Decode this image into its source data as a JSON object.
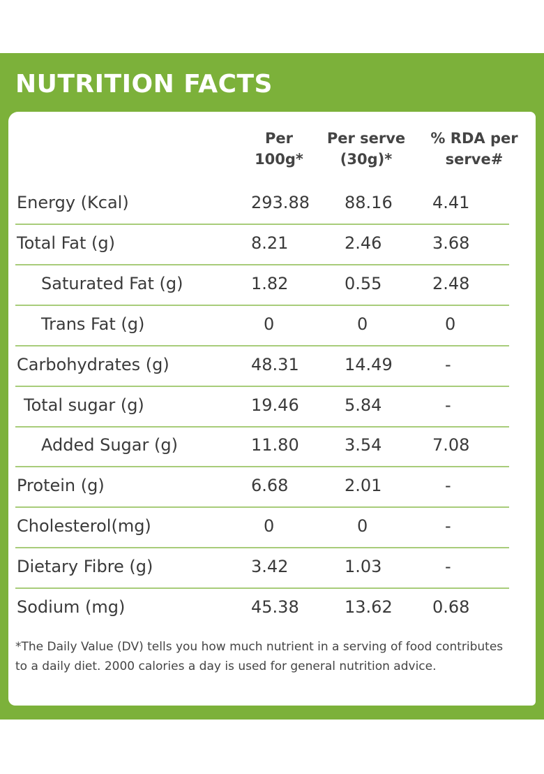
{
  "header": {
    "title": "NUTRITION FACTS"
  },
  "table": {
    "columns": [
      [
        "Per",
        "100g*"
      ],
      [
        "Per serve",
        "(30g)*"
      ],
      [
        "% RDA per",
        "serve#"
      ]
    ],
    "rows": [
      [
        "Energy (Kcal)",
        "293.88",
        "88.16",
        "4.41"
      ],
      [
        "Total Fat (g)",
        "8.21",
        "2.46",
        "3.68"
      ],
      [
        "Saturated Fat (g)",
        "1.82",
        "0.55",
        "2.48"
      ],
      [
        "Trans Fat (g)",
        "0",
        "0",
        "0"
      ],
      [
        "Carbohydrates (g)",
        "48.31",
        "14.49",
        "-"
      ],
      [
        "Total sugar (g)",
        "19.46",
        "5.84",
        "-"
      ],
      [
        "Added Sugar (g)",
        "11.80",
        "3.54",
        "7.08"
      ],
      [
        "Protein (g)",
        "6.68",
        "2.01",
        "-"
      ],
      [
        "Cholesterol(mg)",
        "0",
        "0",
        "-"
      ],
      [
        "Dietary Fibre (g)",
        "3.42",
        "1.03",
        "-"
      ],
      [
        "Sodium (mg)",
        "45.38",
        "13.62",
        "0.68"
      ]
    ]
  },
  "footnote": "*The Daily Value (DV) tells you how much nutrient in a serving of food contributes to a daily diet. 2000 calories a day is used for general nutrition advice."
}
